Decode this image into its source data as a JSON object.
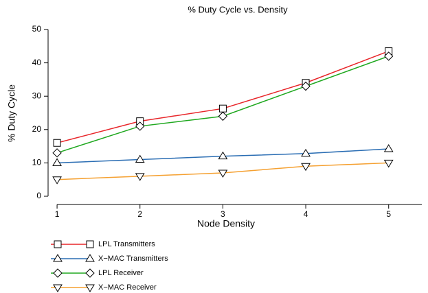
{
  "chart_data": {
    "type": "line",
    "title": "% Duty Cycle vs. Density",
    "x_label": "Node Density",
    "y_label": "% Duty Cycle",
    "x": [
      1,
      2,
      3,
      4,
      5
    ],
    "xlim": [
      0.9,
      5.4
    ],
    "xticks": [
      1,
      2,
      3,
      4,
      5
    ],
    "ylim": [
      0,
      50
    ],
    "yticks": [
      0,
      10,
      20,
      30,
      40,
      50
    ],
    "legend": "bottom",
    "series": [
      {
        "name": "LPL Transmitters",
        "color": "#e8262a",
        "marker": "square",
        "values": [
          16,
          22.5,
          26.3,
          34,
          43.5
        ]
      },
      {
        "name": "X−MAC Transmitters",
        "color": "#2a6db3",
        "marker": "triangle-up",
        "values": [
          10,
          11,
          12,
          12.8,
          14.2
        ]
      },
      {
        "name": "LPL Receiver",
        "color": "#1fa81f",
        "marker": "diamond",
        "values": [
          13,
          21,
          24,
          33,
          42
        ]
      },
      {
        "name": "X−MAC Receiver",
        "color": "#f5a030",
        "marker": "triangle-down",
        "values": [
          5,
          6,
          7,
          9,
          10
        ]
      }
    ]
  }
}
